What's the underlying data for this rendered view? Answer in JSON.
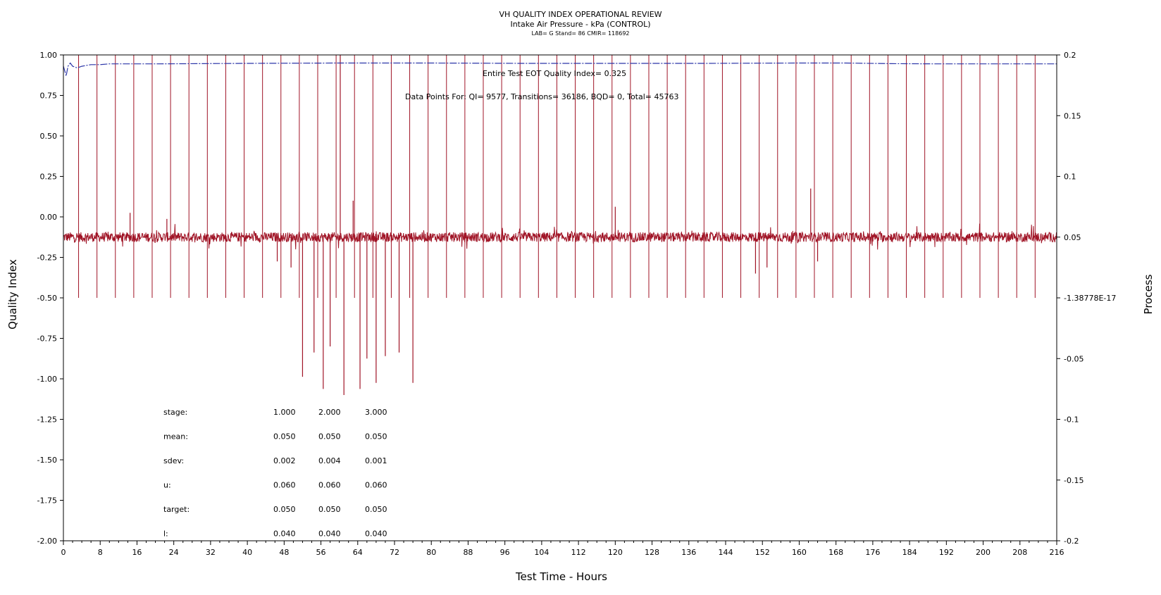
{
  "chart_data": {
    "type": "line",
    "title": "VH QUALITY INDEX OPERATIONAL REVIEW",
    "subtitle": "Intake Air Pressure - kPa (CONTROL)",
    "subtitle2": "LAB= G Stand= 86 CMIR= 118692",
    "xlabel": "Test Time - Hours",
    "ylabel": "Quality Index",
    "y2label": "Process",
    "xlim": [
      0,
      216
    ],
    "ylim": [
      -2.0,
      1.0
    ],
    "y2lim": [
      -0.2,
      0.2
    ],
    "x_ticks": [
      0,
      8,
      16,
      24,
      32,
      40,
      48,
      56,
      64,
      72,
      80,
      88,
      96,
      104,
      112,
      120,
      128,
      136,
      144,
      152,
      160,
      168,
      176,
      184,
      192,
      200,
      208,
      216
    ],
    "y_ticks": [
      1.0,
      0.75,
      0.5,
      0.25,
      0.0,
      -0.25,
      -0.5,
      -0.75,
      -1.0,
      -1.25,
      -1.5,
      -1.75,
      -2.0
    ],
    "y_tick_labels": [
      "1.00",
      "0.75",
      "0.50",
      "0.25",
      "0.00",
      "-0.25",
      "-0.50",
      "-0.75",
      "-1.00",
      "-1.25",
      "-1.50",
      "-1.75",
      "-2.00"
    ],
    "y2_ticks": [
      0.2,
      0.15,
      0.1,
      0.05,
      0.0,
      -0.05,
      -0.1,
      -0.15,
      -0.2
    ],
    "y2_tick_labels": [
      "0.2",
      "0.15",
      "0.1",
      "0.05",
      "-1.38778E-17",
      "-0.05",
      "-0.1",
      "-0.15",
      "-0.2"
    ],
    "annotations": {
      "qi": "Entire Test EOT Quality Index=  0.325",
      "points": "Data Points For: QI=  9577, Transitions= 36186, BQD=     0, Total= 45763"
    },
    "series": [
      {
        "name": "Quality Index",
        "color": "#2b35a8",
        "x": [
          0,
          0.3,
          0.6,
          1,
          1.5,
          2,
          3,
          4,
          5,
          6,
          8,
          10,
          20,
          40,
          60,
          80,
          100,
          120,
          140,
          160,
          170,
          180,
          190,
          200,
          216
        ],
        "qi": [
          0.93,
          0.9,
          0.87,
          0.93,
          0.95,
          0.93,
          0.92,
          0.93,
          0.935,
          0.94,
          0.94,
          0.945,
          0.945,
          0.948,
          0.95,
          0.95,
          0.948,
          0.948,
          0.948,
          0.95,
          0.95,
          0.946,
          0.945,
          0.945,
          0.945
        ]
      },
      {
        "name": "Process",
        "color": "#a01426",
        "baseline": 0.05,
        "noise_amplitude": 0.004,
        "transition_top": 0.2,
        "transition_bottom": 0.0,
        "transition_times": [
          0,
          3.3,
          7.3,
          11.3,
          15.3,
          19.3,
          23.3,
          27.3,
          31.3,
          35.3,
          39.3,
          43.3,
          47.3,
          51.3,
          55.3,
          59.3,
          63.3,
          67.3,
          71.3,
          75.3,
          79.3,
          83.3,
          87.3,
          91.3,
          95.3,
          99.3,
          103.3,
          107.3,
          111.3,
          115.3,
          119.3,
          123.3,
          127.3,
          131.3,
          135.3,
          139.3,
          143.3,
          147.3,
          151.3,
          155.3,
          159.3,
          163.3,
          167.3,
          171.3,
          175.3,
          179.3,
          183.3,
          187.3,
          191.3,
          195.3,
          199.3,
          203.3,
          207.3,
          211.3
        ],
        "spikes": [
          {
            "x": 46.5,
            "y": 0.03
          },
          {
            "x": 49.5,
            "y": 0.025
          },
          {
            "x": 52,
            "y": -0.065
          },
          {
            "x": 54.5,
            "y": -0.045
          },
          {
            "x": 56.5,
            "y": -0.075
          },
          {
            "x": 58,
            "y": -0.04
          },
          {
            "x": 60.2,
            "y": 0.2
          },
          {
            "x": 61,
            "y": -0.08
          },
          {
            "x": 63,
            "y": 0.08
          },
          {
            "x": 64.5,
            "y": -0.075
          },
          {
            "x": 66,
            "y": -0.05
          },
          {
            "x": 68,
            "y": -0.07
          },
          {
            "x": 70,
            "y": -0.048
          },
          {
            "x": 73,
            "y": -0.045
          },
          {
            "x": 76,
            "y": -0.07
          },
          {
            "x": 150.5,
            "y": 0.02
          },
          {
            "x": 153,
            "y": 0.025
          },
          {
            "x": 162.5,
            "y": 0.09
          },
          {
            "x": 164,
            "y": 0.03
          },
          {
            "x": 120,
            "y": 0.075
          },
          {
            "x": 22.5,
            "y": 0.065
          },
          {
            "x": 14.5,
            "y": 0.07
          }
        ]
      }
    ],
    "stats_table": {
      "headers": [
        "stage:",
        "1.000",
        "2.000",
        "3.000"
      ],
      "rows": [
        [
          "mean:",
          "0.050",
          "0.050",
          "0.050"
        ],
        [
          "sdev:",
          "0.002",
          "0.004",
          "0.001"
        ],
        [
          "u:",
          "0.060",
          "0.060",
          "0.060"
        ],
        [
          "target:",
          "0.050",
          "0.050",
          "0.050"
        ],
        [
          "l:",
          "0.040",
          "0.040",
          "0.040"
        ]
      ]
    }
  }
}
